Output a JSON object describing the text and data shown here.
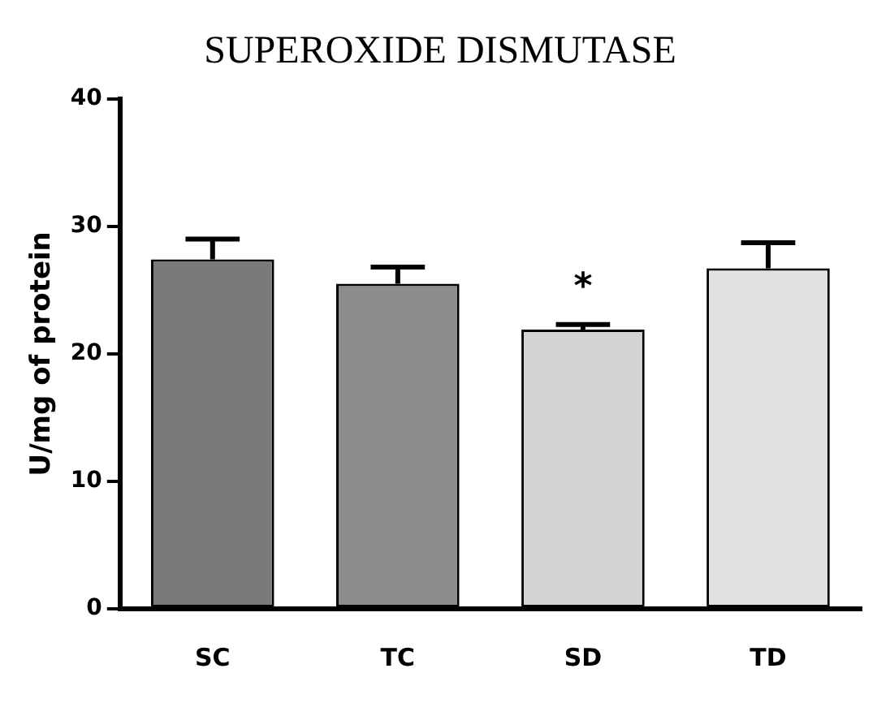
{
  "chart_data": {
    "type": "bar",
    "title": "SUPEROXIDE DISMUTASE",
    "ylabel": "U/mg of protein",
    "categories": [
      "SC",
      "TC",
      "SD",
      "TD"
    ],
    "values": [
      27.4,
      25.5,
      21.9,
      26.7
    ],
    "colors": [
      "#7a7a7a",
      "#8c8c8c",
      "#d4d4d4",
      "#e2e2e2"
    ],
    "errors": [
      [
        27.4,
        29.0
      ],
      [
        25.5,
        26.8
      ],
      [
        21.9,
        22.3
      ],
      [
        26.7,
        28.7
      ]
    ],
    "ylim": [
      0,
      40
    ],
    "yticks": [
      0,
      10,
      20,
      30,
      40
    ],
    "grid": false,
    "legend": false,
    "annotations": [
      {
        "text": "*",
        "x": "SD",
        "y": 22.3
      }
    ]
  }
}
